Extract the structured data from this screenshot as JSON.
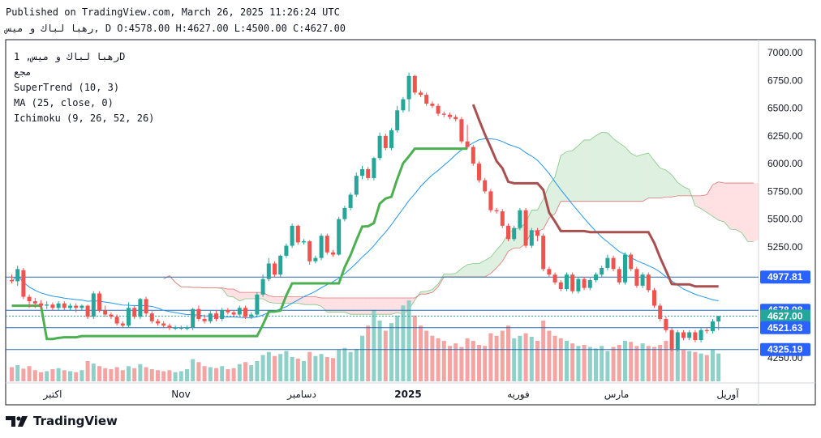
{
  "header": {
    "published": "Published on TradingView.com, March 26, 2025 11:26:24 UTC",
    "ohlc_line": "رهبا لباك و ميس, D O:4578.00 H:4627.00 L:4500.00 C:4627.00"
  },
  "indicators": {
    "symbol_line": "رهبا لباك و ميس, 1D",
    "exchange": "مجع",
    "supertrend": "SuperTrend (10, 3)",
    "ma": "MA (25, close, 0)",
    "ichimoku": "Ichimoku (9, 26, 52, 26)"
  },
  "brand": {
    "name": "TradingView"
  },
  "colors": {
    "up": "#26a69a",
    "down": "#ef5350",
    "supertrend_up": "#4caf50",
    "supertrend_down": "#a85050",
    "ma": "#2196f3",
    "cloud_bull": "#c8e6c9",
    "cloud_bear": "#ffcdd2",
    "hline": "#2a6ab0"
  },
  "chart_data": {
    "type": "candlestick",
    "ylim": [
      4150,
      7080
    ],
    "y_ticks": [
      "7000.00",
      "6750.00",
      "6500.00",
      "6250.00",
      "6000.00",
      "5750.00",
      "5500.00",
      "5250.00",
      "4250.00"
    ],
    "x_ticks": [
      "اكتبر",
      "Nov",
      "دسامبر",
      "2025",
      "فوريه",
      "مارس",
      "آوريل"
    ],
    "horizontal_lines": [
      "4977.81",
      "4678.98",
      "4627.00",
      "4521.63",
      "4325.19"
    ],
    "last_price": "4627.00",
    "candles": [
      [
        4950,
        4940,
        5000,
        4920
      ],
      [
        4940,
        5050,
        5080,
        4900
      ],
      [
        5040,
        4800,
        5060,
        4780
      ],
      [
        4800,
        4760,
        4820,
        4700
      ],
      [
        4760,
        4740,
        4790,
        4700
      ],
      [
        4740,
        4720,
        4770,
        4690
      ],
      [
        4720,
        4730,
        4760,
        4690
      ],
      [
        4730,
        4700,
        4750,
        4680
      ],
      [
        4700,
        4740,
        4760,
        4680
      ],
      [
        4740,
        4700,
        4760,
        4680
      ],
      [
        4700,
        4720,
        4740,
        4680
      ],
      [
        4720,
        4700,
        4740,
        4660
      ],
      [
        4700,
        4720,
        4730,
        4680
      ],
      [
        4720,
        4620,
        4730,
        4600
      ],
      [
        4620,
        4830,
        4850,
        4600
      ],
      [
        4830,
        4680,
        4850,
        4660
      ],
      [
        4680,
        4640,
        4720,
        4620
      ],
      [
        4640,
        4620,
        4660,
        4600
      ],
      [
        4620,
        4560,
        4640,
        4540
      ],
      [
        4560,
        4540,
        4580,
        4520
      ],
      [
        4540,
        4700,
        4750,
        4520
      ],
      [
        4700,
        4620,
        4720,
        4600
      ],
      [
        4620,
        4780,
        4790,
        4600
      ],
      [
        4780,
        4650,
        4800,
        4630
      ],
      [
        4650,
        4580,
        4670,
        4560
      ],
      [
        4580,
        4560,
        4600,
        4540
      ],
      [
        4560,
        4540,
        4580,
        4520
      ],
      [
        4540,
        4520,
        4560,
        4500
      ],
      [
        4520,
        4520,
        4540,
        4500
      ],
      [
        4520,
        4520,
        4540,
        4500
      ],
      [
        4520,
        4520,
        4540,
        4500
      ],
      [
        4520,
        4690,
        4700,
        4500
      ],
      [
        4690,
        4600,
        4720,
        4580
      ],
      [
        4600,
        4580,
        4640,
        4560
      ],
      [
        4580,
        4650,
        4680,
        4560
      ],
      [
        4650,
        4600,
        4680,
        4580
      ],
      [
        4600,
        4680,
        4700,
        4580
      ],
      [
        4680,
        4660,
        4700,
        4640
      ],
      [
        4660,
        4640,
        4680,
        4620
      ],
      [
        4640,
        4700,
        4720,
        4620
      ],
      [
        4700,
        4620,
        4720,
        4600
      ],
      [
        4620,
        4640,
        4660,
        4600
      ],
      [
        4640,
        4820,
        4840,
        4620
      ],
      [
        4820,
        4960,
        5000,
        4800
      ],
      [
        4960,
        5100,
        5150,
        4940
      ],
      [
        5100,
        5000,
        5120,
        4980
      ],
      [
        5000,
        5170,
        5180,
        4980
      ],
      [
        5170,
        5260,
        5280,
        5150
      ],
      [
        5260,
        5440,
        5460,
        5240
      ],
      [
        5440,
        5290,
        5450,
        5270
      ],
      [
        5290,
        5300,
        5320,
        5270
      ],
      [
        5300,
        5120,
        5310,
        5090
      ],
      [
        5120,
        5150,
        5170,
        5100
      ],
      [
        5150,
        5350,
        5370,
        5130
      ],
      [
        5350,
        5200,
        5370,
        5180
      ],
      [
        5200,
        5180,
        5220,
        5160
      ],
      [
        5180,
        5500,
        5520,
        5170
      ],
      [
        5500,
        5600,
        5620,
        5480
      ],
      [
        5600,
        5720,
        5740,
        5580
      ],
      [
        5720,
        5890,
        5920,
        5700
      ],
      [
        5890,
        5950,
        5980,
        5860
      ],
      [
        5950,
        5870,
        5970,
        5850
      ],
      [
        5870,
        6050,
        6060,
        5850
      ],
      [
        6050,
        6250,
        6280,
        6030
      ],
      [
        6250,
        6140,
        6270,
        6120
      ],
      [
        6140,
        6300,
        6320,
        6120
      ],
      [
        6300,
        6480,
        6520,
        6280
      ],
      [
        6480,
        6580,
        6600,
        6460
      ],
      [
        6580,
        6790,
        6820,
        6470
      ],
      [
        6790,
        6640,
        6800,
        6620
      ],
      [
        6640,
        6620,
        6660,
        6600
      ],
      [
        6620,
        6540,
        6640,
        6520
      ],
      [
        6540,
        6520,
        6560,
        6500
      ],
      [
        6520,
        6450,
        6540,
        6430
      ],
      [
        6450,
        6440,
        6470,
        6420
      ],
      [
        6440,
        6420,
        6460,
        6400
      ],
      [
        6420,
        6400,
        6440,
        6380
      ],
      [
        6400,
        6200,
        6420,
        6180
      ],
      [
        6200,
        6150,
        6350,
        6130
      ],
      [
        6150,
        6000,
        6170,
        5980
      ],
      [
        6000,
        5850,
        6020,
        5830
      ],
      [
        5850,
        5750,
        5870,
        5730
      ],
      [
        5750,
        5580,
        5770,
        5560
      ],
      [
        5580,
        5570,
        5600,
        5550
      ],
      [
        5570,
        5440,
        5590,
        5420
      ],
      [
        5440,
        5320,
        5460,
        5300
      ],
      [
        5320,
        5420,
        5440,
        5300
      ],
      [
        5420,
        5580,
        5600,
        5400
      ],
      [
        5580,
        5260,
        5600,
        5240
      ],
      [
        5260,
        5400,
        5420,
        5240
      ],
      [
        5400,
        5350,
        5420,
        5300
      ],
      [
        5350,
        5050,
        5370,
        5030
      ],
      [
        5050,
        5000,
        5070,
        4980
      ],
      [
        5000,
        4930,
        5020,
        4910
      ],
      [
        4930,
        4870,
        4950,
        4850
      ],
      [
        4870,
        5000,
        5020,
        4850
      ],
      [
        5000,
        4850,
        5020,
        4830
      ],
      [
        4850,
        4960,
        4980,
        4830
      ],
      [
        4960,
        4880,
        4980,
        4860
      ],
      [
        4880,
        4950,
        4970,
        4860
      ],
      [
        4950,
        5000,
        5020,
        4930
      ],
      [
        5000,
        5060,
        5080,
        4980
      ],
      [
        5060,
        5150,
        5180,
        5040
      ],
      [
        5150,
        5050,
        5170,
        5030
      ],
      [
        5050,
        4930,
        5070,
        4910
      ],
      [
        4930,
        5180,
        5200,
        4910
      ],
      [
        5180,
        5050,
        5200,
        5030
      ],
      [
        5050,
        4900,
        5070,
        4880
      ],
      [
        4900,
        5000,
        5020,
        4880
      ],
      [
        5000,
        4860,
        5020,
        4840
      ],
      [
        4860,
        4720,
        4880,
        4700
      ],
      [
        4720,
        4600,
        4740,
        4580
      ],
      [
        4600,
        4500,
        4620,
        4480
      ],
      [
        4500,
        4330,
        4520,
        4310
      ],
      [
        4330,
        4480,
        4500,
        4310
      ],
      [
        4480,
        4430,
        4500,
        4410
      ],
      [
        4430,
        4480,
        4500,
        4410
      ],
      [
        4480,
        4410,
        4500,
        4390
      ],
      [
        4410,
        4500,
        4520,
        4390
      ],
      [
        4500,
        4490,
        4520,
        4470
      ],
      [
        4490,
        4578,
        4600,
        4470
      ],
      [
        4578,
        4627,
        4627,
        4500
      ]
    ],
    "volume": [
      28,
      32,
      25,
      30,
      22,
      18,
      20,
      24,
      26,
      22,
      20,
      18,
      22,
      40,
      35,
      30,
      26,
      24,
      28,
      22,
      30,
      26,
      34,
      28,
      24,
      22,
      20,
      22,
      18,
      20,
      24,
      44,
      38,
      30,
      28,
      26,
      30,
      24,
      26,
      34,
      38,
      32,
      40,
      52,
      58,
      50,
      54,
      60,
      48,
      45,
      40,
      58,
      50,
      54,
      48,
      46,
      62,
      66,
      58,
      64,
      90,
      110,
      140,
      120,
      100,
      115,
      130,
      150,
      160,
      130,
      110,
      100,
      90,
      85,
      80,
      70,
      75,
      68,
      85,
      80,
      72,
      70,
      95,
      90,
      100,
      110,
      85,
      90,
      95,
      88,
      80,
      120,
      100,
      90,
      85,
      80,
      75,
      70,
      72,
      68,
      65,
      70,
      60,
      68,
      72,
      80,
      78,
      70,
      75,
      70,
      68,
      72,
      80,
      70,
      65,
      62,
      60,
      58,
      55,
      52,
      62,
      55
    ],
    "volume_max": 160
  }
}
